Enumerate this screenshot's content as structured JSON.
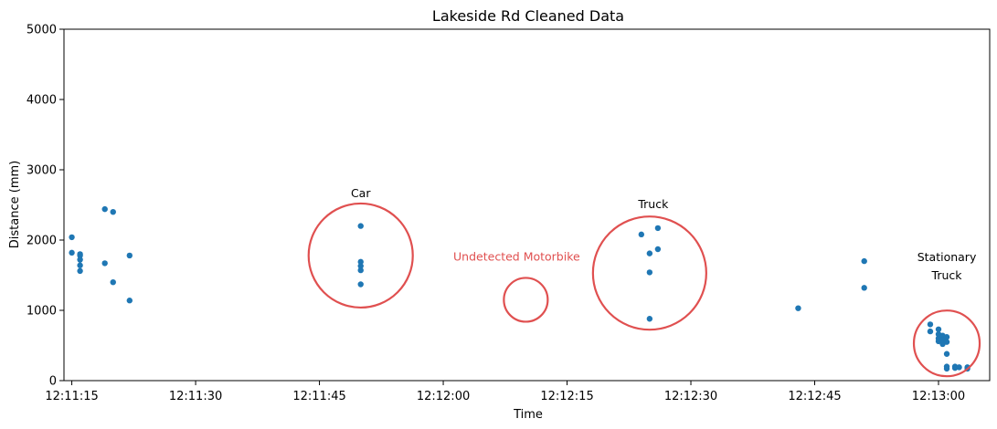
{
  "chart_data": {
    "type": "scatter",
    "title": "Lakeside Rd Cleaned Data",
    "xlabel": "Time",
    "ylabel": "Distance (mm)",
    "xlim": [
      "12:11:15",
      "12:13:06"
    ],
    "ylim": [
      0,
      5000
    ],
    "xticks": [
      "12:11:15",
      "12:11:30",
      "12:11:45",
      "12:12:00",
      "12:12:15",
      "12:12:30",
      "12:12:45",
      "12:13:00"
    ],
    "yticks": [
      0,
      1000,
      2000,
      3000,
      4000,
      5000
    ],
    "grid": false,
    "point_color": "#1f77b4",
    "annotation_color": "#e05050",
    "series": [
      {
        "points": [
          {
            "x": "12:11:15.0",
            "y": 2040
          },
          {
            "x": "12:11:15.0",
            "y": 1820
          },
          {
            "x": "12:11:16.0",
            "y": 1800
          },
          {
            "x": "12:11:16.0",
            "y": 1780
          },
          {
            "x": "12:11:16.0",
            "y": 1720
          },
          {
            "x": "12:11:16.0",
            "y": 1640
          },
          {
            "x": "12:11:16.0",
            "y": 1560
          },
          {
            "x": "12:11:19.0",
            "y": 2440
          },
          {
            "x": "12:11:19.0",
            "y": 1670
          },
          {
            "x": "12:11:20.0",
            "y": 2400
          },
          {
            "x": "12:11:20.0",
            "y": 1400
          },
          {
            "x": "12:11:22.0",
            "y": 1780
          },
          {
            "x": "12:11:22.0",
            "y": 1140
          },
          {
            "x": "12:11:50.0",
            "y": 2200
          },
          {
            "x": "12:11:50.0",
            "y": 1690
          },
          {
            "x": "12:11:50.0",
            "y": 1630
          },
          {
            "x": "12:11:50.0",
            "y": 1570
          },
          {
            "x": "12:11:50.0",
            "y": 1370
          },
          {
            "x": "12:12:24.0",
            "y": 2080
          },
          {
            "x": "12:12:25.0",
            "y": 1810
          },
          {
            "x": "12:12:25.0",
            "y": 1540
          },
          {
            "x": "12:12:25.0",
            "y": 880
          },
          {
            "x": "12:12:26.0",
            "y": 2170
          },
          {
            "x": "12:12:26.0",
            "y": 1870
          },
          {
            "x": "12:12:43.0",
            "y": 1030
          },
          {
            "x": "12:12:51.0",
            "y": 1700
          },
          {
            "x": "12:12:51.0",
            "y": 1320
          },
          {
            "x": "12:12:59.0",
            "y": 800
          },
          {
            "x": "12:12:59.0",
            "y": 700
          },
          {
            "x": "12:13:00.0",
            "y": 730
          },
          {
            "x": "12:13:00.0",
            "y": 660
          },
          {
            "x": "12:13:00.0",
            "y": 600
          },
          {
            "x": "12:13:00.0",
            "y": 560
          },
          {
            "x": "12:13:00.5",
            "y": 640
          },
          {
            "x": "12:13:00.5",
            "y": 580
          },
          {
            "x": "12:13:00.5",
            "y": 520
          },
          {
            "x": "12:13:01.0",
            "y": 620
          },
          {
            "x": "12:13:01.0",
            "y": 550
          },
          {
            "x": "12:13:01.0",
            "y": 380
          },
          {
            "x": "12:13:01.0",
            "y": 200
          },
          {
            "x": "12:13:01.0",
            "y": 170
          },
          {
            "x": "12:13:02.0",
            "y": 200
          },
          {
            "x": "12:13:02.0",
            "y": 180
          },
          {
            "x": "12:13:02.5",
            "y": 190
          },
          {
            "x": "12:13:03.5",
            "y": 190
          },
          {
            "x": "12:13:03.5",
            "y": 170
          }
        ]
      }
    ],
    "annotations": [
      {
        "label": "Car",
        "center": {
          "x": "12:11:50.0",
          "y": 1780
        },
        "label_color": "#000000"
      },
      {
        "label": "Undetected Motorbike",
        "center": {
          "x": "12:12:10.0",
          "y": 1150
        },
        "label_color": "#e05050"
      },
      {
        "label": "Truck",
        "center": {
          "x": "12:12:25.0",
          "y": 1530
        },
        "label_color": "#000000"
      },
      {
        "label": "Stationary\nTruck",
        "center": {
          "x": "12:13:01.0",
          "y": 530
        },
        "label_color": "#000000"
      }
    ]
  }
}
